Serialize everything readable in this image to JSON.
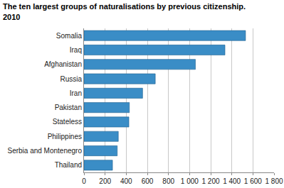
{
  "chart_data": {
    "type": "bar",
    "orientation": "horizontal",
    "title": "The ten largest groups of naturalisations by previous citizenship.\n2010",
    "categories": [
      "Somalia",
      "Iraq",
      "Afghanistan",
      "Russia",
      "Iran",
      "Pakistan",
      "Stateless",
      "Philippines",
      "Serbia and Montenegro",
      "Thailand"
    ],
    "values": [
      1530,
      1335,
      1055,
      675,
      555,
      430,
      425,
      325,
      315,
      270
    ],
    "color": "#3a8dc6",
    "xlim": [
      0,
      1800
    ],
    "xticks": [
      0,
      200,
      400,
      600,
      800,
      {
        "value": 1000,
        "label": "1 000"
      },
      {
        "value": 1200,
        "label": "1 200"
      },
      {
        "value": 1400,
        "label": "1 400"
      },
      {
        "value": 1600,
        "label": "1 600"
      },
      {
        "value": 1800,
        "label": "1 800"
      }
    ],
    "grid": true
  }
}
